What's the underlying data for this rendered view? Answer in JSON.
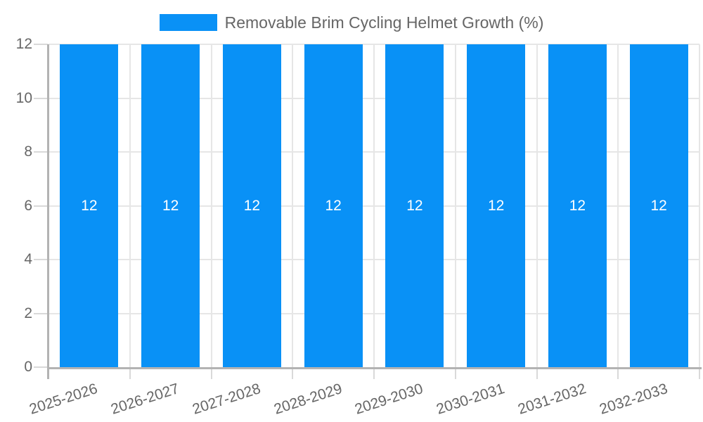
{
  "chart_data": {
    "type": "bar",
    "title": "Removable Brim Cycling Helmet Growth (%)",
    "legend": {
      "position": "top",
      "entries": [
        "Removable Brim Cycling Helmet Growth (%)"
      ]
    },
    "categories": [
      "2025-2026",
      "2026-2027",
      "2027-2028",
      "2028-2029",
      "2029-2030",
      "2030-2031",
      "2031-2032",
      "2032-2033"
    ],
    "values": [
      12,
      12,
      12,
      12,
      12,
      12,
      12,
      12
    ],
    "bar_value_labels": [
      "12",
      "12",
      "12",
      "12",
      "12",
      "12",
      "12",
      "12"
    ],
    "xlabel": "",
    "ylabel": "",
    "ylim": [
      0,
      12
    ],
    "yticks": [
      0,
      2,
      4,
      6,
      8,
      10,
      12
    ],
    "grid": "horizontal-and-vertical",
    "x_tick_rotation_deg": -18,
    "colors": {
      "bar": "#0991f6",
      "bar_label": "#ffffff",
      "axis_text": "#666666",
      "gridline": "#e6e6e6",
      "tick": "#d9d9d9",
      "axis_line": "#b3b3b3",
      "background": "#ffffff"
    }
  }
}
